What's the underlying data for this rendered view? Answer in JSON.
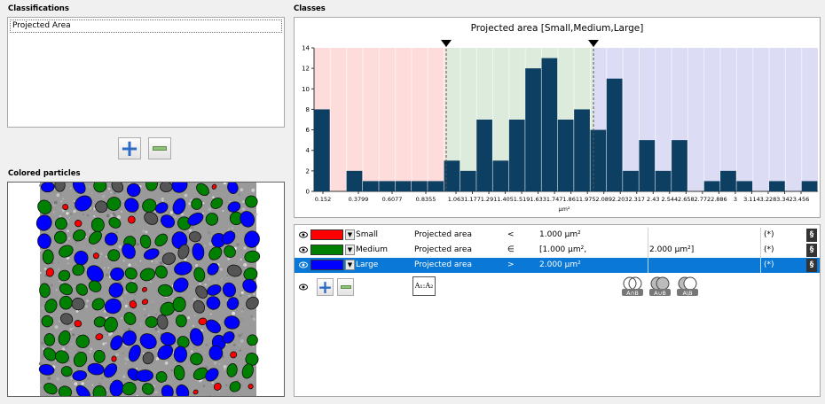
{
  "classifications": {
    "label": "Classifications",
    "items": [
      "Projected Area"
    ]
  },
  "colored_particles": {
    "label": "Colored particles"
  },
  "classes": {
    "label": "Classes"
  },
  "chart_data": {
    "type": "bar",
    "title": "Projected area [Small,Medium,Large]",
    "xlabel": "µm²",
    "ylabel": "",
    "ylim": [
      0,
      14
    ],
    "yticks": [
      0,
      2,
      4,
      6,
      8,
      10,
      12,
      14
    ],
    "xticks": [
      "0.152",
      "0.3799",
      "0.6077",
      "0.8355",
      "1.063",
      "1.177",
      "1.291",
      "1.405",
      "1.519",
      "1.633",
      "1.747",
      "1.861",
      "1.975",
      "2.089",
      "2.203",
      "2.317",
      "2.43",
      "2.544",
      "2.658",
      "2.772",
      "2.886",
      "3",
      "3.114",
      "3.228",
      "3.342",
      "3.456"
    ],
    "bin_start": 0.1,
    "bin_width": 0.057,
    "values": [
      8,
      0,
      2,
      1,
      1,
      1,
      1,
      1,
      3,
      2,
      7,
      3,
      7,
      12,
      13,
      7,
      8,
      6,
      11,
      2,
      5,
      2,
      5,
      0,
      1,
      2,
      1,
      0,
      1,
      0,
      1
    ],
    "thresholds": [
      1.0,
      2.0
    ],
    "class_colors": [
      "#ffdcdc",
      "#dcebdc",
      "#dcdcf5"
    ],
    "bar_color": "#0d3f63"
  },
  "class_table": {
    "rows": [
      {
        "name": "Small",
        "color": "#ff0000",
        "property": "Projected area",
        "op": "<",
        "v1": "1.000 µm²",
        "v2": "",
        "star": "(*)",
        "selected": false
      },
      {
        "name": "Medium",
        "color": "#008000",
        "property": "Projected area",
        "op": "∈",
        "v1": "[1.000 µm²,",
        "v2": "2.000 µm²]",
        "star": "(*)",
        "selected": false
      },
      {
        "name": "Large",
        "color": "#0000ff",
        "property": "Projected area",
        "op": ">",
        "v1": "2.000 µm²",
        "v2": "",
        "star": "(*)",
        "selected": true
      }
    ],
    "toolbar": {
      "a12": "A₁:A₂",
      "and": "A∩B",
      "or": "A∪B",
      "diff": "A\\B"
    }
  }
}
